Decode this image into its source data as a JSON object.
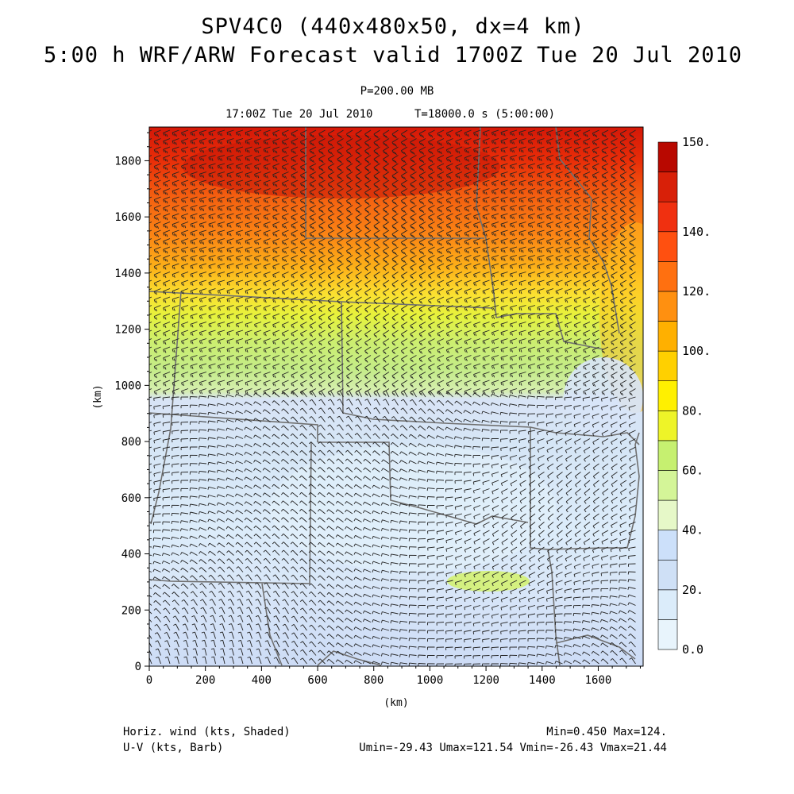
{
  "titles": {
    "line1": "SPV4C0 (440x480x50, dx=4 km)",
    "line2": "5:00 h WRF/ARW Forecast valid 1700Z Tue 20 Jul 2010",
    "level": "P=200.00 MB",
    "valid": "17:00Z Tue 20 Jul 2010",
    "sim_time": "T=18000.0 s (5:00:00)"
  },
  "axes": {
    "x_label": "(km)",
    "y_label": "(km)",
    "x_ticks": [
      "0",
      "200",
      "400",
      "600",
      "800",
      "1000",
      "1200",
      "1400",
      "1600"
    ],
    "y_ticks": [
      "0",
      "200",
      "400",
      "600",
      "800",
      "1000",
      "1200",
      "1400",
      "1600",
      "1800"
    ],
    "x_range_km": [
      0,
      1760
    ],
    "y_range_km": [
      0,
      1920
    ]
  },
  "colorbar": {
    "labels": [
      "0.0",
      "20.",
      "40.",
      "60.",
      "80.",
      "100.",
      "120.",
      "140.",
      "150."
    ],
    "colors": [
      "#e8f4fc",
      "#dbecfa",
      "#cfe0f6",
      "#cce0fa",
      "#e6f8c8",
      "#d4f598",
      "#c6f070",
      "#eef428",
      "#fff000",
      "#ffd000",
      "#ffb000",
      "#ff9010",
      "#ff7010",
      "#ff5010",
      "#f03010",
      "#d82008",
      "#b80800"
    ]
  },
  "captions": {
    "shaded": "Horiz. wind (kts, Shaded)",
    "barb": "U-V (kts, Barb)",
    "minmax": "Min=0.450 Max=124.",
    "uv_range": "Umin=-29.43 Umax=121.54 Vmin=-26.43 Vmax=21.44"
  },
  "colors": {
    "boundary": "#707070",
    "barb": "#222222"
  }
}
